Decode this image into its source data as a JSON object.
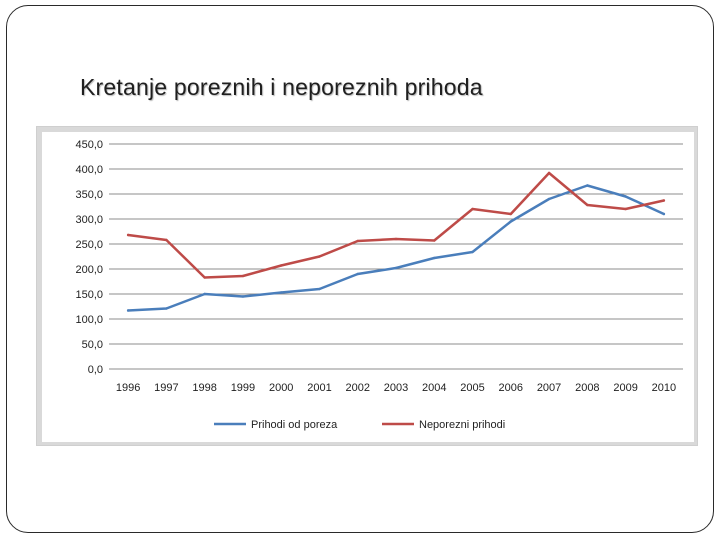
{
  "slide": {
    "title": "Kretanje poreznih i neporeznih prihoda"
  },
  "chart_data": {
    "type": "line",
    "title": "",
    "xlabel": "",
    "ylabel": "",
    "ylim": [
      0,
      450
    ],
    "y_ticks": [
      "450,0",
      "400,0",
      "350,0",
      "300,0",
      "250,0",
      "200,0",
      "150,0",
      "100,0",
      "50,0",
      "0,0"
    ],
    "y_tick_values": [
      450,
      400,
      350,
      300,
      250,
      200,
      150,
      100,
      50,
      0
    ],
    "categories": [
      "1996",
      "1997",
      "1998",
      "1999",
      "2000",
      "2001",
      "2002",
      "2003",
      "2004",
      "2005",
      "2006",
      "2007",
      "2008",
      "2009",
      "2010"
    ],
    "grid": "horizontal",
    "legend_position": "bottom",
    "series": [
      {
        "name": "Prihodi od poreza",
        "color": "#4a7ebb",
        "values": [
          117,
          121,
          150,
          145,
          153,
          160,
          190,
          202,
          222,
          234,
          295,
          340,
          367,
          345,
          310
        ]
      },
      {
        "name": "Neporezni prihodi",
        "color": "#be4b48",
        "values": [
          268,
          258,
          183,
          186,
          207,
          225,
          256,
          260,
          257,
          320,
          310,
          392,
          328,
          320,
          337
        ]
      }
    ]
  }
}
